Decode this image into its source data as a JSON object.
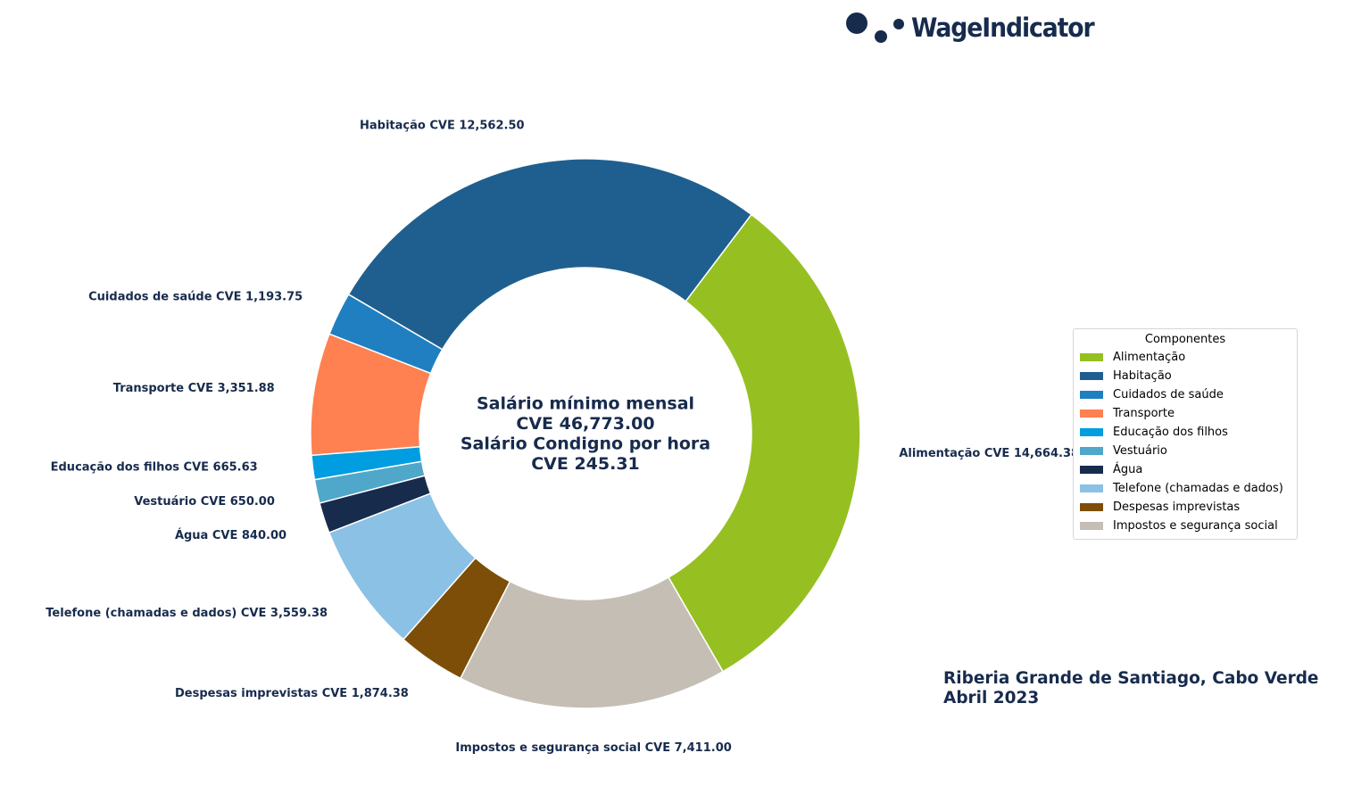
{
  "brand": {
    "logo_text": "WageIndicator",
    "color": "#172b4d"
  },
  "chart_data": {
    "type": "pie",
    "variant": "donut",
    "currency": "CVE",
    "center_text": [
      "Salário mínimo mensal",
      "CVE 46,773.00",
      "Salário Condigno por hora",
      "CVE 245.31"
    ],
    "slices": [
      {
        "name": "Alimentação",
        "value": 14664.38,
        "label": "Alimentação CVE 14,664.38",
        "color": "#96c022"
      },
      {
        "name": "Habitação",
        "value": 12562.5,
        "label": "Habitação CVE 12,562.50",
        "color": "#1f5f8f"
      },
      {
        "name": "Cuidados de saúde",
        "value": 1193.75,
        "label": "Cuidados de saúde CVE 1,193.75",
        "color": "#1f7fc0"
      },
      {
        "name": "Transporte",
        "value": 3351.88,
        "label": "Transporte CVE 3,351.88",
        "color": "#ff8050"
      },
      {
        "name": "Educação dos filhos",
        "value": 665.63,
        "label": "Educação dos filhos CVE 665.63",
        "color": "#009ee0"
      },
      {
        "name": "Vestuário",
        "value": 650.0,
        "label": "Vestuário CVE 650.00",
        "color": "#4fa7c9"
      },
      {
        "name": "Água",
        "value": 840.0,
        "label": "Água CVE 840.00",
        "color": "#172b4d"
      },
      {
        "name": "Telefone (chamadas e dados)",
        "value": 3559.38,
        "label": "Telefone (chamadas e dados) CVE 3,559.38",
        "color": "#8bc1e5"
      },
      {
        "name": "Despesas imprevistas",
        "value": 1874.38,
        "label": "Despesas imprevistas CVE 1,874.38",
        "color": "#7d4e08"
      },
      {
        "name": "Impostos e segurança social",
        "value": 7411.0,
        "label": "Impostos e segurança social CVE 7,411.00",
        "color": "#c5beb4"
      }
    ],
    "legend": {
      "title": "Componentes",
      "placement": "right"
    },
    "label_color": "#172b4d"
  },
  "footer": {
    "location": "Riberia Grande de Santiago, Cabo Verde",
    "date": "Abril 2023"
  }
}
